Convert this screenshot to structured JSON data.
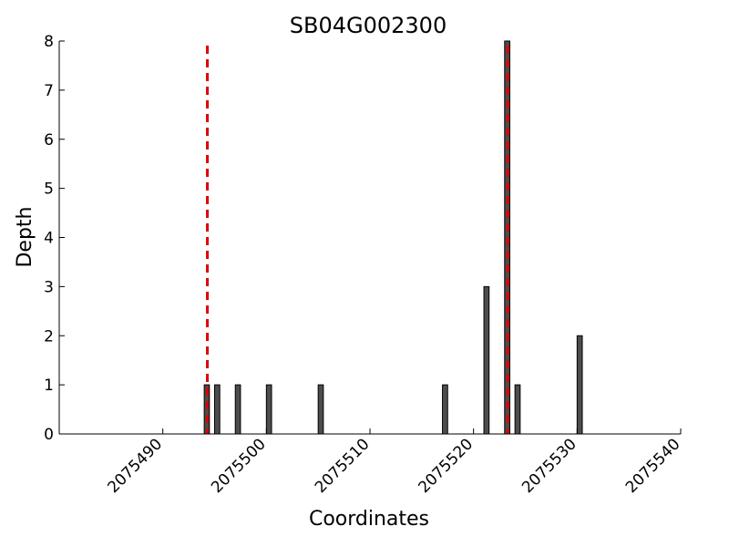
{
  "chart_data": {
    "type": "bar",
    "title": "SB04G002300",
    "xlabel": "Coordinates",
    "ylabel": "Depth",
    "xlim": [
      2075480,
      2075540
    ],
    "ylim": [
      0,
      8
    ],
    "xticks": [
      "2075490",
      "2075500",
      "2075510",
      "2075520",
      "2075530",
      "2075540"
    ],
    "yticks": [
      "0",
      "1",
      "2",
      "3",
      "4",
      "5",
      "6",
      "7",
      "8"
    ],
    "grid": false,
    "bar_color": "#4d4d4d",
    "bar_edge_color": "#000000",
    "series": [
      {
        "x": [
          2075494,
          2075495,
          2075497,
          2075500,
          2075505,
          2075517,
          2075521,
          2075523,
          2075524,
          2075530
        ],
        "values": [
          1,
          1,
          1,
          1,
          1,
          1,
          3,
          8,
          1,
          2
        ]
      }
    ],
    "reference_lines": {
      "color": "#e00000",
      "style": "dashed",
      "x": [
        2075494.3,
        2075523.3
      ]
    }
  }
}
